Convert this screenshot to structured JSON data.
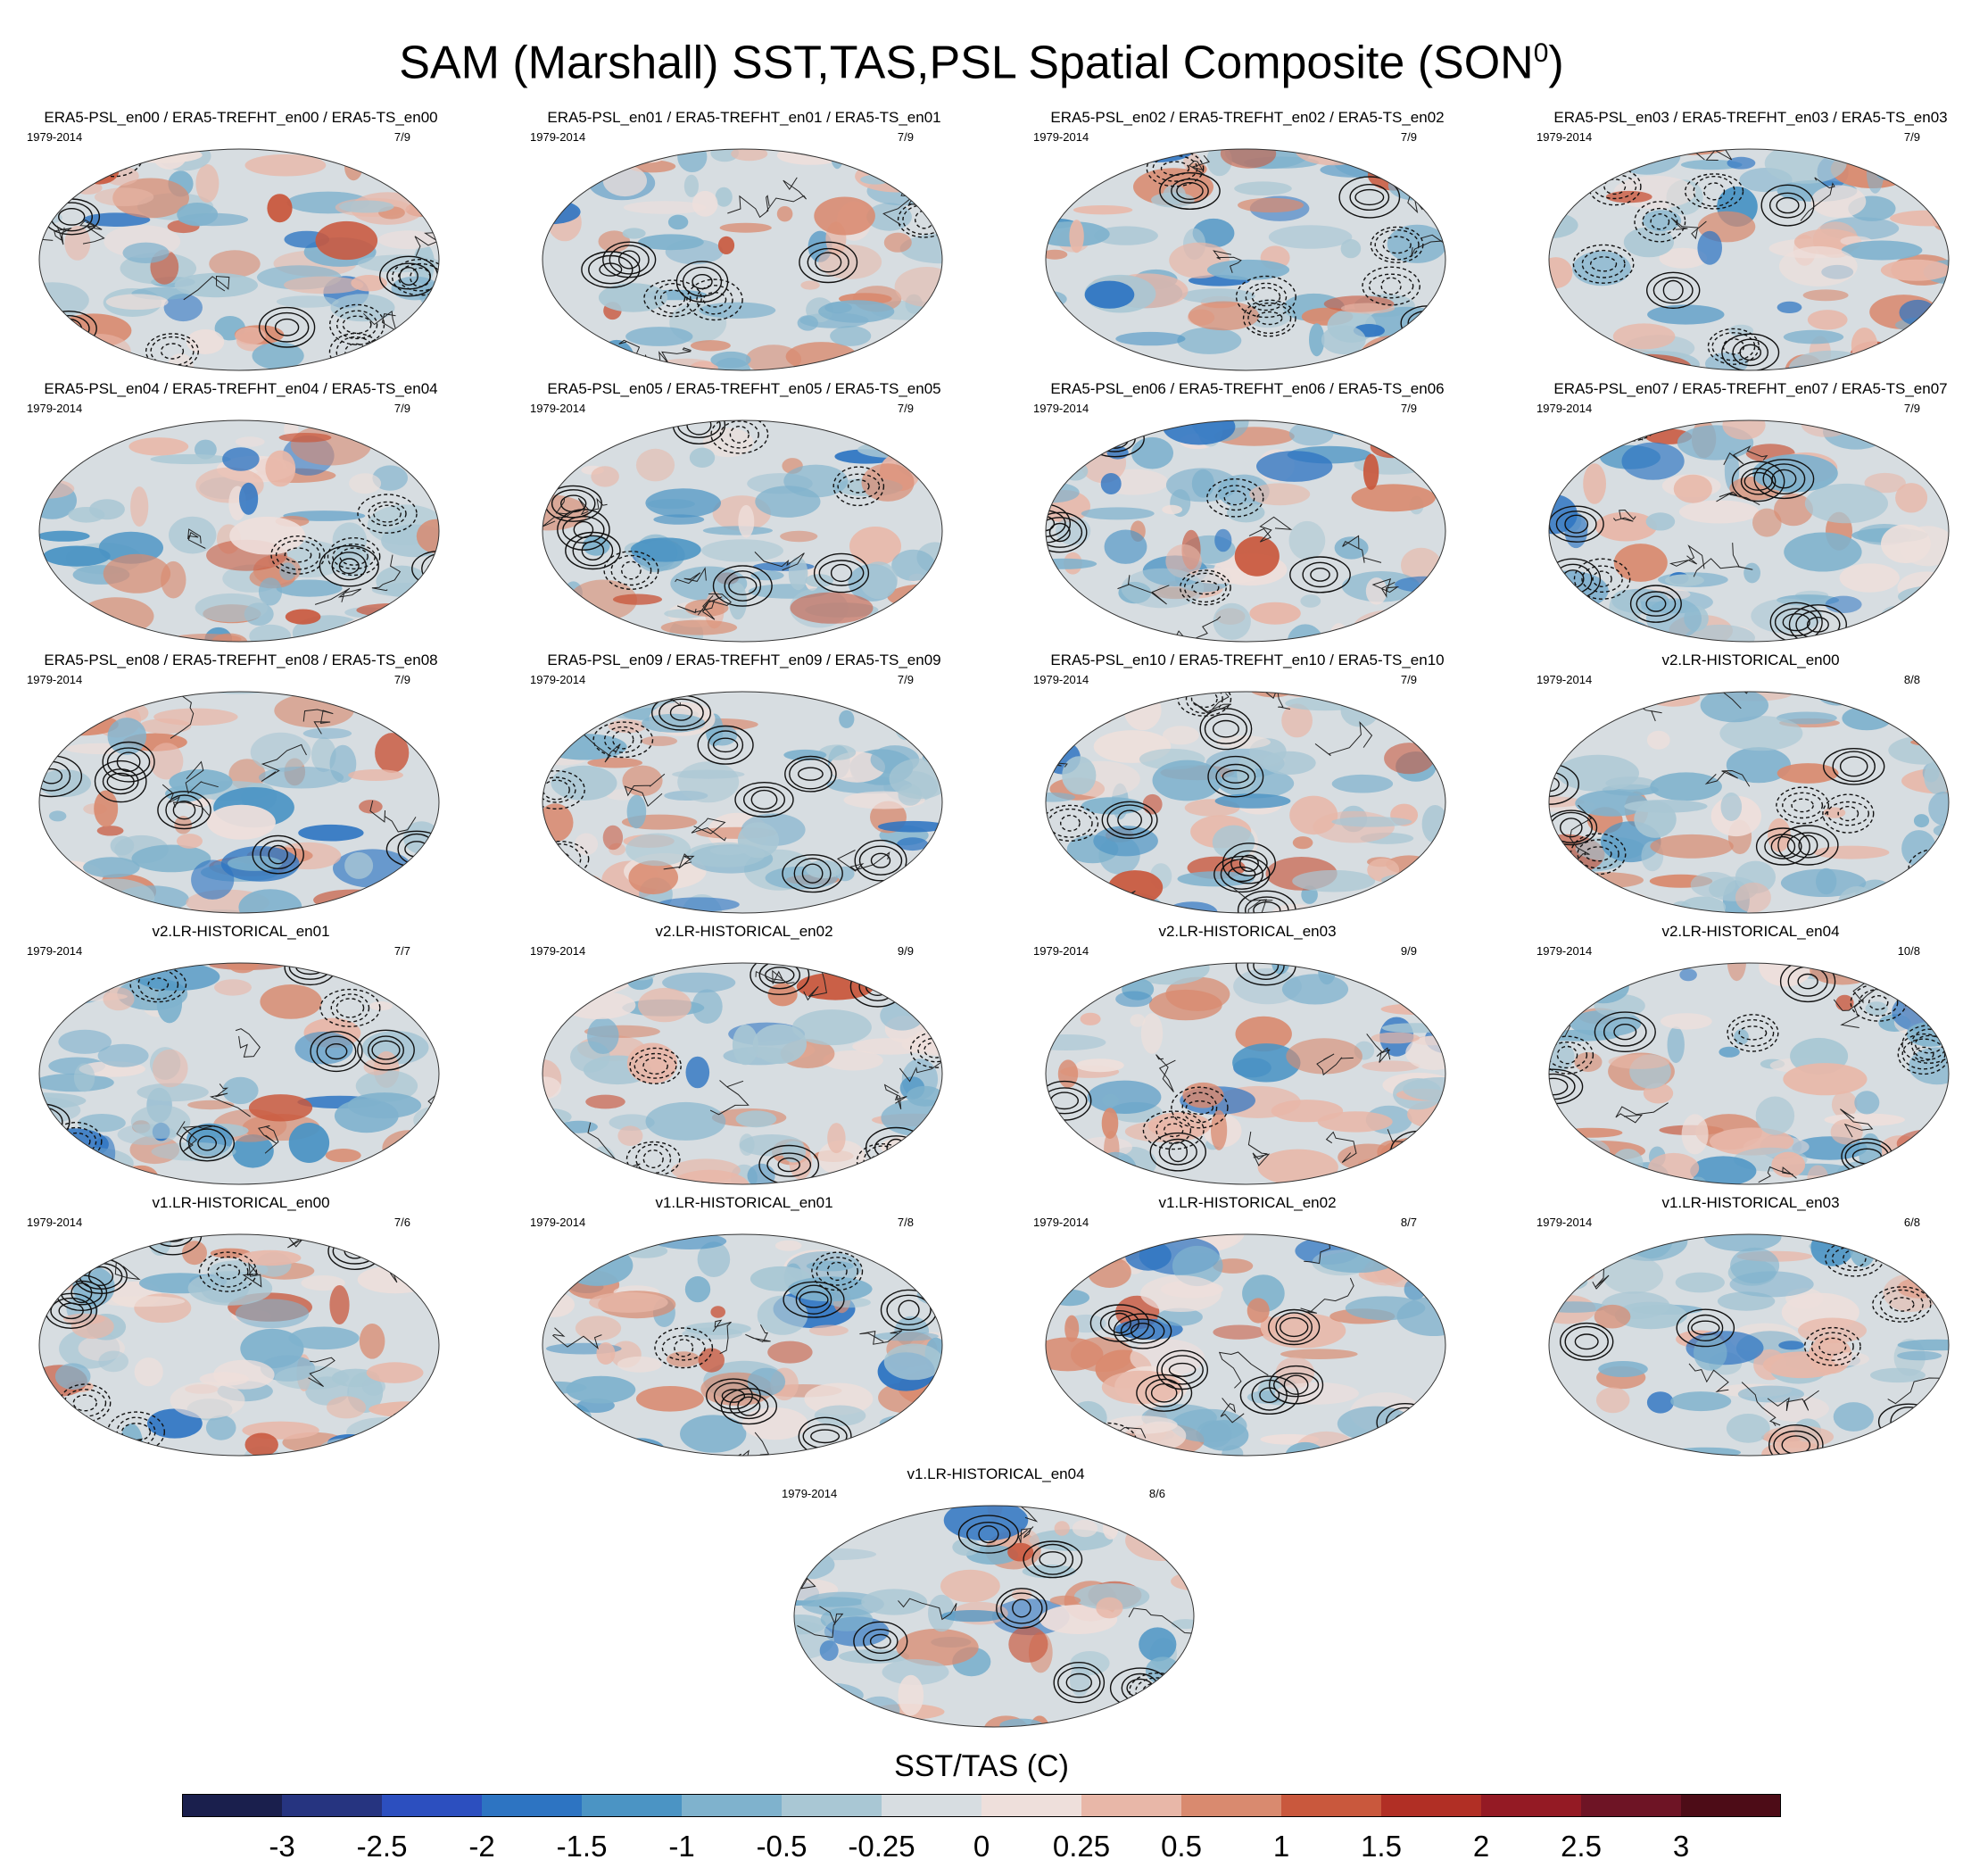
{
  "title": "SAM (Marshall) SST,TAS,PSL Spatial Composite (SON",
  "title_sup": "0",
  "title_end": ")",
  "chart_data": {
    "type": "heatmap",
    "panels": [
      {
        "title": "ERA5-PSL_en00 / ERA5-TREFHT_en00 / ERA5-TS_en00",
        "period": "1979-2014",
        "count": "7/9"
      },
      {
        "title": "ERA5-PSL_en01 / ERA5-TREFHT_en01 / ERA5-TS_en01",
        "period": "1979-2014",
        "count": "7/9"
      },
      {
        "title": "ERA5-PSL_en02 / ERA5-TREFHT_en02 / ERA5-TS_en02",
        "period": "1979-2014",
        "count": "7/9"
      },
      {
        "title": "ERA5-PSL_en03 / ERA5-TREFHT_en03 / ERA5-TS_en03",
        "period": "1979-2014",
        "count": "7/9"
      },
      {
        "title": "ERA5-PSL_en04 / ERA5-TREFHT_en04 / ERA5-TS_en04",
        "period": "1979-2014",
        "count": "7/9"
      },
      {
        "title": "ERA5-PSL_en05 / ERA5-TREFHT_en05 / ERA5-TS_en05",
        "period": "1979-2014",
        "count": "7/9"
      },
      {
        "title": "ERA5-PSL_en06 / ERA5-TREFHT_en06 / ERA5-TS_en06",
        "period": "1979-2014",
        "count": "7/9"
      },
      {
        "title": "ERA5-PSL_en07 / ERA5-TREFHT_en07 / ERA5-TS_en07",
        "period": "1979-2014",
        "count": "7/9"
      },
      {
        "title": "ERA5-PSL_en08 / ERA5-TREFHT_en08 / ERA5-TS_en08",
        "period": "1979-2014",
        "count": "7/9"
      },
      {
        "title": "ERA5-PSL_en09 / ERA5-TREFHT_en09 / ERA5-TS_en09",
        "period": "1979-2014",
        "count": "7/9"
      },
      {
        "title": "ERA5-PSL_en10 / ERA5-TREFHT_en10 / ERA5-TS_en10",
        "period": "1979-2014",
        "count": "7/9"
      },
      {
        "title": "v2.LR-HISTORICAL_en00",
        "period": "1979-2014",
        "count": "8/8"
      },
      {
        "title": "v2.LR-HISTORICAL_en01",
        "period": "1979-2014",
        "count": "7/7"
      },
      {
        "title": "v2.LR-HISTORICAL_en02",
        "period": "1979-2014",
        "count": "9/9"
      },
      {
        "title": "v2.LR-HISTORICAL_en03",
        "period": "1979-2014",
        "count": "9/9"
      },
      {
        "title": "v2.LR-HISTORICAL_en04",
        "period": "1979-2014",
        "count": "10/8"
      },
      {
        "title": "v1.LR-HISTORICAL_en00",
        "period": "1979-2014",
        "count": "7/6"
      },
      {
        "title": "v1.LR-HISTORICAL_en01",
        "period": "1979-2014",
        "count": "7/8"
      },
      {
        "title": "v1.LR-HISTORICAL_en02",
        "period": "1979-2014",
        "count": "8/7"
      },
      {
        "title": "v1.LR-HISTORICAL_en03",
        "period": "1979-2014",
        "count": "6/8"
      },
      {
        "title": "v1.LR-HISTORICAL_en04",
        "period": "1979-2014",
        "count": "8/6"
      }
    ],
    "colorbar": {
      "label": "SST/TAS (C)",
      "ticks": [
        "-3",
        "-2.5",
        "-2",
        "-1.5",
        "-1",
        "-0.5",
        "-0.25",
        "0",
        "0.25",
        "0.5",
        "1",
        "1.5",
        "2",
        "2.5",
        "3"
      ],
      "colors": [
        "#1a1f4d",
        "#263480",
        "#2c4fbf",
        "#2d74c2",
        "#4b94c4",
        "#7fb2cd",
        "#a9c7d4",
        "#d7dde1",
        "#eedfdb",
        "#e8b7a8",
        "#d98a6f",
        "#c9583d",
        "#b12f25",
        "#941a24",
        "#6e1425",
        "#4d0c17"
      ]
    }
  }
}
